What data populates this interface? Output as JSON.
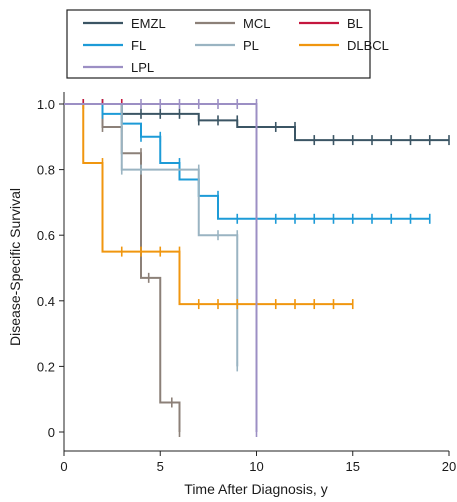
{
  "chart_data": {
    "type": "line",
    "subtype": "kaplan-meier step",
    "xlabel": "Time After Diagnosis, y",
    "ylabel": "Disease-Specific Survival",
    "xlim": [
      0,
      20
    ],
    "ylim": [
      0,
      1.0
    ],
    "xticks": [
      "0",
      "5",
      "10",
      "15",
      "20"
    ],
    "yticks": [
      "0",
      "0.2",
      "0.4",
      "0.6",
      "0.8",
      "1.0"
    ],
    "grid": false,
    "legend_position": "top-left",
    "series": [
      {
        "name": "EMZL",
        "color": "#3b5564",
        "steps": [
          [
            0,
            1.0
          ],
          [
            3,
            0.97
          ],
          [
            7,
            0.95
          ],
          [
            9,
            0.93
          ],
          [
            12,
            0.89
          ],
          [
            20,
            0.89
          ]
        ],
        "censored": [
          [
            1,
            1.0
          ],
          [
            2,
            1.0
          ],
          [
            3,
            0.97
          ],
          [
            4,
            0.97
          ],
          [
            5,
            0.97
          ],
          [
            6,
            0.97
          ],
          [
            7,
            0.95
          ],
          [
            8,
            0.95
          ],
          [
            9,
            0.95
          ],
          [
            10,
            0.93
          ],
          [
            11,
            0.93
          ],
          [
            12,
            0.93
          ],
          [
            13,
            0.89
          ],
          [
            14,
            0.89
          ],
          [
            15,
            0.89
          ],
          [
            16,
            0.89
          ],
          [
            17,
            0.89
          ],
          [
            18,
            0.89
          ],
          [
            19,
            0.89
          ],
          [
            20,
            0.89
          ]
        ]
      },
      {
        "name": "MCL",
        "color": "#8c8078",
        "steps": [
          [
            0,
            1.0
          ],
          [
            1,
            1.0
          ],
          [
            2,
            0.93
          ],
          [
            3,
            0.85
          ],
          [
            4,
            0.47
          ],
          [
            5,
            0.09
          ],
          [
            6,
            0.0
          ]
        ],
        "censored": [
          [
            2,
            0.93
          ],
          [
            3,
            0.93
          ],
          [
            4,
            0.85
          ],
          [
            4.4,
            0.47
          ],
          [
            5.6,
            0.09
          ],
          [
            6,
            0.0
          ]
        ]
      },
      {
        "name": "BL",
        "color": "#c4163e",
        "steps": [
          [
            0,
            1.0
          ],
          [
            3.2,
            1.0
          ]
        ],
        "censored": [
          [
            1,
            1.0
          ],
          [
            2,
            1.0
          ],
          [
            3,
            1.0
          ]
        ]
      },
      {
        "name": "FL",
        "color": "#1d9bd7",
        "steps": [
          [
            0,
            1.0
          ],
          [
            2,
            0.97
          ],
          [
            3,
            0.94
          ],
          [
            4,
            0.9
          ],
          [
            5,
            0.82
          ],
          [
            6,
            0.77
          ],
          [
            7,
            0.72
          ],
          [
            8,
            0.65
          ],
          [
            19,
            0.65
          ]
        ],
        "censored": [
          [
            2,
            0.97
          ],
          [
            3,
            0.97
          ],
          [
            3,
            0.94
          ],
          [
            4,
            0.9
          ],
          [
            5,
            0.9
          ],
          [
            6,
            0.82
          ],
          [
            7,
            0.77
          ],
          [
            8,
            0.72
          ],
          [
            9,
            0.65
          ],
          [
            10,
            0.65
          ],
          [
            11,
            0.65
          ],
          [
            12,
            0.65
          ],
          [
            13,
            0.65
          ],
          [
            14,
            0.65
          ],
          [
            15,
            0.65
          ],
          [
            16,
            0.65
          ],
          [
            17,
            0.65
          ],
          [
            18,
            0.65
          ],
          [
            19,
            0.65
          ]
        ]
      },
      {
        "name": "PL",
        "color": "#9ab4c2",
        "steps": [
          [
            0,
            1.0
          ],
          [
            3,
            0.8
          ],
          [
            7,
            0.6
          ],
          [
            9,
            0.2
          ]
        ],
        "censored": [
          [
            3,
            0.8
          ],
          [
            4,
            0.8
          ],
          [
            7,
            0.8
          ],
          [
            8,
            0.6
          ],
          [
            9,
            0.6
          ],
          [
            9,
            0.2
          ]
        ]
      },
      {
        "name": "DLBCL",
        "color": "#f0960f",
        "steps": [
          [
            0,
            1.0
          ],
          [
            1,
            0.82
          ],
          [
            2,
            0.55
          ],
          [
            6,
            0.39
          ],
          [
            15,
            0.39
          ]
        ],
        "censored": [
          [
            2,
            0.82
          ],
          [
            3,
            0.55
          ],
          [
            4,
            0.55
          ],
          [
            5,
            0.55
          ],
          [
            6,
            0.55
          ],
          [
            7,
            0.39
          ],
          [
            8,
            0.39
          ],
          [
            9,
            0.39
          ],
          [
            10,
            0.39
          ],
          [
            11,
            0.39
          ],
          [
            12,
            0.39
          ],
          [
            13,
            0.39
          ],
          [
            14,
            0.39
          ],
          [
            15,
            0.39
          ]
        ]
      },
      {
        "name": "LPL",
        "color": "#9c8fc4",
        "steps": [
          [
            0,
            1.0
          ],
          [
            10,
            1.0
          ],
          [
            10,
            0.0
          ]
        ],
        "censored": [
          [
            4,
            1.0
          ],
          [
            5,
            1.0
          ],
          [
            6,
            1.0
          ],
          [
            7,
            1.0
          ],
          [
            8,
            1.0
          ],
          [
            9,
            1.0
          ],
          [
            10,
            1.0
          ],
          [
            10,
            0.0
          ]
        ]
      }
    ]
  }
}
